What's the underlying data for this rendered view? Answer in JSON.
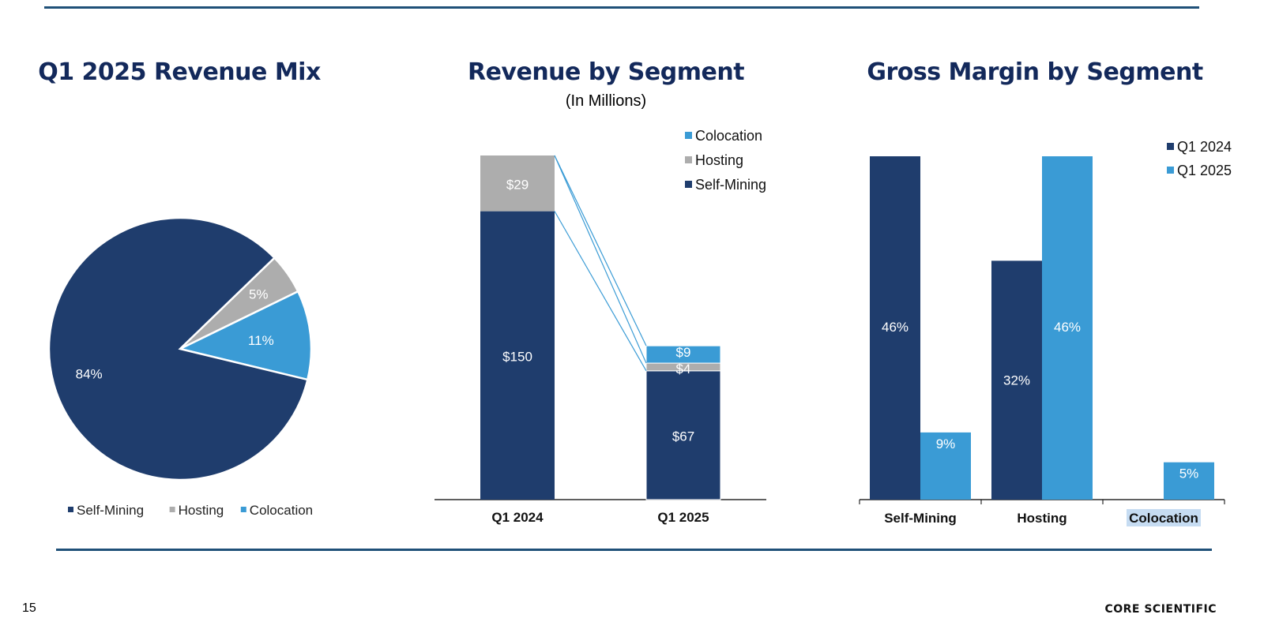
{
  "page_number": "15",
  "brand": "CORE SCIENTIFIC",
  "colors": {
    "self_mining": "#1f3d6d",
    "hosting": "#adadad",
    "colocation": "#3a9bd5",
    "q1_2024": "#1f3d6d",
    "q1_2025": "#3a9bd5",
    "title": "#13295b",
    "rule": "#1f5078"
  },
  "chart_data": [
    {
      "type": "pie",
      "title": "Q1 2025 Revenue Mix",
      "labels": [
        "Self-Mining",
        "Hosting",
        "Colocation"
      ],
      "values": [
        84,
        5,
        11
      ],
      "value_labels": [
        "84%",
        "5%",
        "11%"
      ],
      "legend": [
        "Self-Mining",
        "Hosting",
        "Colocation"
      ],
      "legend_position": "bottom"
    },
    {
      "type": "bar",
      "stacked": true,
      "title": "Revenue by Segment",
      "subtitle": "(In Millions)",
      "categories": [
        "Q1 2024",
        "Q1 2025"
      ],
      "series": [
        {
          "name": "Self-Mining",
          "values": [
            150,
            67
          ],
          "labels": [
            "$150",
            "$67"
          ]
        },
        {
          "name": "Hosting",
          "values": [
            29,
            4
          ],
          "labels": [
            "$29",
            "$4"
          ]
        },
        {
          "name": "Colocation",
          "values": [
            0,
            9
          ],
          "labels": [
            "",
            "$9"
          ]
        }
      ],
      "legend": [
        "Colocation",
        "Hosting",
        "Self-Mining"
      ],
      "legend_position": "top-right",
      "ylim": [
        0,
        179
      ]
    },
    {
      "type": "bar",
      "title": "Gross Margin by Segment",
      "categories": [
        "Self-Mining",
        "Hosting",
        "Colocation"
      ],
      "series": [
        {
          "name": "Q1 2024",
          "values": [
            46,
            32,
            null
          ],
          "labels": [
            "46%",
            "32%",
            ""
          ]
        },
        {
          "name": "Q1 2025",
          "values": [
            9,
            46,
            5
          ],
          "labels": [
            "9%",
            "46%",
            "5%"
          ]
        }
      ],
      "legend": [
        "Q1 2024",
        "Q1 2025"
      ],
      "legend_position": "top-right",
      "highlighted_category": "Colocation",
      "ylim": [
        0,
        46
      ]
    }
  ]
}
